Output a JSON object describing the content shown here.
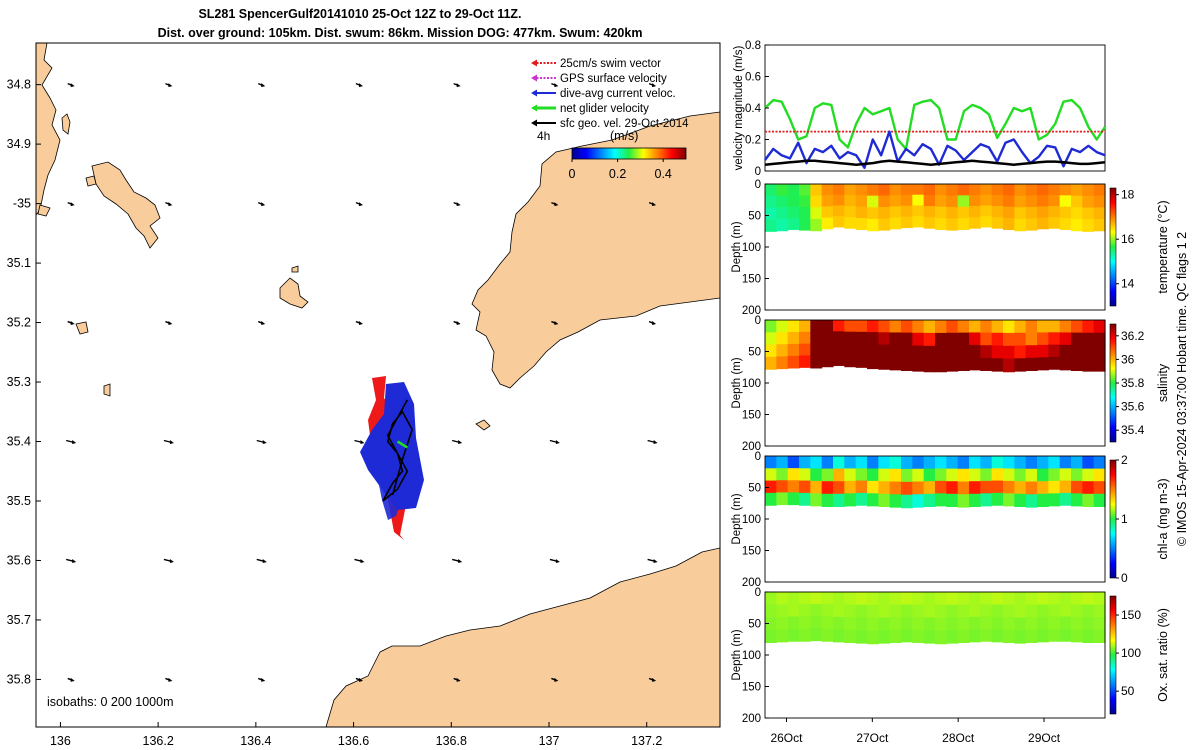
{
  "title": {
    "line1": "SL281 SpencerGulf20141010 25-Oct 12Z to 29-Oct 11Z.",
    "line2": "Dist. over ground: 105km. Dist. swum: 86km. Mission DOG: 477km. Swum: 420km"
  },
  "colors": {
    "land": "#f9cc9c",
    "swim_vector": "#e51a1a",
    "gps_velocity": "#cc33cc",
    "current": "#1e2ad6",
    "glider": "#22dd22",
    "geo": "#000000"
  },
  "chart_data": [
    {
      "type": "map",
      "xlim": [
        135.95,
        137.35
      ],
      "ylim": [
        -35.88,
        -34.73
      ],
      "x_ticks": [
        136,
        136.2,
        136.4,
        136.6,
        136.8,
        137,
        137.2
      ],
      "x_tick_labels": [
        "136",
        "136.2",
        "136.4",
        "136.6",
        "136.8",
        "137",
        "137.2"
      ],
      "y_ticks": [
        -34.8,
        -34.9,
        -35,
        -35.1,
        -35.2,
        -35.3,
        -35.4,
        -35.5,
        -35.6,
        -35.7,
        -35.8
      ],
      "y_tick_labels": [
        "34.8",
        "34.9",
        "-35",
        "35.1",
        "35.2",
        "35.3",
        "35.4",
        "35.5",
        "35.6",
        "35.7",
        "35.8"
      ],
      "legend": [
        {
          "label": "25cm/s swim vector",
          "color": "#e51a1a"
        },
        {
          "label": "GPS surface velocity",
          "color": "#cc33cc"
        },
        {
          "label": "dive-avg current veloc.",
          "color": "#1e2ad6"
        },
        {
          "label": "net glider velocity",
          "color": "#22dd22"
        },
        {
          "label": "sfc geo. vel. 29-Oct-2014",
          "color": "#000000"
        }
      ],
      "legend_position": "top-right",
      "colorbar": {
        "label": "(m/s)",
        "ticks": [
          "0",
          "0.2",
          "0.4"
        ],
        "range": [
          0,
          0.5
        ],
        "extra": "4h"
      },
      "annotation": "isobaths: 0   200  1000m",
      "track_lon": [
        136.71,
        136.69,
        136.67,
        136.69,
        136.7,
        136.68,
        136.66,
        136.69,
        136.71,
        136.69,
        136.67,
        136.68,
        136.7,
        136.72,
        136.7,
        136.68
      ],
      "track_lat": [
        -35.33,
        -35.36,
        -35.39,
        -35.42,
        -35.45,
        -35.47,
        -35.5,
        -35.48,
        -35.45,
        -35.42,
        -35.4,
        -35.37,
        -35.35,
        -35.38,
        -35.43,
        -35.49
      ]
    },
    {
      "type": "line",
      "ylabel": "velocity magnitude (m/s)",
      "ylim": [
        0,
        0.8
      ],
      "y_ticks": [
        "0",
        "0.2",
        "0.4",
        "0.6",
        "0.8"
      ],
      "xlim": [
        25.5,
        29.46
      ],
      "series": [
        {
          "color": "#22dd22",
          "values": [
            0.4,
            0.45,
            0.44,
            0.33,
            0.2,
            0.22,
            0.4,
            0.43,
            0.42,
            0.2,
            0.15,
            0.3,
            0.4,
            0.36,
            0.38,
            0.4,
            0.2,
            0.14,
            0.42,
            0.44,
            0.45,
            0.4,
            0.2,
            0.2,
            0.38,
            0.42,
            0.4,
            0.36,
            0.21,
            0.3,
            0.4,
            0.38,
            0.4,
            0.2,
            0.23,
            0.3,
            0.44,
            0.45,
            0.4,
            0.28,
            0.2,
            0.28
          ]
        },
        {
          "color": "#e51a1a",
          "values": [
            0.25,
            0.25
          ]
        },
        {
          "color": "#1e2ad6",
          "values": [
            0.07,
            0.14,
            0.1,
            0.08,
            0.18,
            0.05,
            0.14,
            0.12,
            0.16,
            0.08,
            0.12,
            0.1,
            0.02,
            0.2,
            0.1,
            0.25,
            0.06,
            0.14,
            0.1,
            0.17,
            0.14,
            0.04,
            0.16,
            0.13,
            0.07,
            0.12,
            0.17,
            0.15,
            0.06,
            0.18,
            0.2,
            0.12,
            0.05,
            0.09,
            0.16,
            0.15,
            0.03,
            0.14,
            0.12,
            0.16,
            0.12,
            0.1
          ]
        },
        {
          "color": "#000000",
          "values": [
            0.04,
            0.045,
            0.05,
            0.055,
            0.06,
            0.065,
            0.065,
            0.06,
            0.055,
            0.05,
            0.045,
            0.04,
            0.045,
            0.05,
            0.06,
            0.065,
            0.06,
            0.055,
            0.05,
            0.045,
            0.04,
            0.045,
            0.05,
            0.055,
            0.06,
            0.065,
            0.06,
            0.055,
            0.05,
            0.045,
            0.04,
            0.045,
            0.05,
            0.055,
            0.06,
            0.06,
            0.055,
            0.05,
            0.045,
            0.045,
            0.05,
            0.055
          ]
        }
      ]
    },
    {
      "type": "heatmap",
      "ylabel": "Depth (m)",
      "ylim": [
        0,
        200
      ],
      "y_ticks": [
        "0",
        "50",
        "100",
        "150",
        "200"
      ],
      "colorbar_label": "temperature (°C)",
      "colorbar_ticks": [
        "18",
        "16",
        "14"
      ],
      "color_range": [
        13,
        18.3
      ],
      "bottom_depth": [
        75,
        74,
        72,
        73,
        74,
        71,
        68,
        70,
        72,
        74,
        73,
        71,
        69,
        68,
        70,
        72,
        73,
        72,
        70,
        68,
        70,
        72,
        74,
        73,
        71,
        70,
        72,
        74,
        75,
        74
      ],
      "values": [
        [
          15.5,
          15.7,
          15.6,
          15.8,
          16.6,
          16.9,
          17.0,
          16.8,
          16.9,
          17.0,
          17.1,
          16.9,
          17.0,
          17.0,
          17.1,
          16.9,
          17.0,
          17.1,
          17.0,
          16.9,
          17.0,
          17.1,
          16.9,
          17.0,
          17.1,
          17.0,
          16.9,
          16.8,
          16.9,
          17.0
        ],
        [
          15.4,
          15.5,
          15.6,
          15.7,
          16.5,
          16.8,
          16.9,
          16.7,
          16.8,
          16.2,
          16.9,
          16.8,
          16.9,
          16.3,
          17.0,
          16.8,
          16.9,
          16.0,
          16.9,
          16.8,
          16.9,
          17.0,
          16.8,
          16.9,
          17.0,
          16.9,
          16.3,
          16.6,
          16.8,
          16.9
        ],
        [
          15.3,
          15.4,
          15.5,
          15.6,
          16.2,
          16.6,
          16.7,
          16.6,
          16.7,
          16.6,
          16.7,
          16.6,
          16.7,
          16.6,
          16.7,
          16.6,
          16.7,
          16.6,
          16.7,
          16.6,
          16.7,
          16.8,
          16.6,
          16.7,
          16.8,
          16.7,
          16.6,
          16.5,
          16.6,
          16.7
        ],
        [
          15.4,
          15.3,
          15.4,
          15.6,
          16.0,
          16.4,
          16.6,
          16.5,
          16.5,
          16.4,
          16.6,
          16.5,
          16.6,
          16.5,
          16.6,
          16.5,
          16.6,
          16.5,
          16.6,
          16.5,
          16.6,
          16.7,
          16.5,
          16.6,
          16.7,
          16.6,
          16.5,
          16.4,
          16.5,
          16.6
        ]
      ]
    },
    {
      "type": "heatmap",
      "ylabel": "Depth (m)",
      "ylim": [
        0,
        200
      ],
      "y_ticks": [
        "0",
        "50",
        "100",
        "150",
        "200"
      ],
      "colorbar_label": "salinity",
      "colorbar_ticks": [
        "36.2",
        "36",
        "35.8",
        "35.6",
        "35.4"
      ],
      "color_range": [
        35.3,
        36.3
      ],
      "bottom_depth": [
        78,
        77,
        76,
        75,
        76,
        74,
        72,
        74,
        75,
        77,
        78,
        79,
        80,
        81,
        82,
        82,
        81,
        80,
        79,
        80,
        81,
        82,
        81,
        80,
        79,
        78,
        79,
        80,
        81,
        81
      ],
      "values": [
        [
          35.85,
          35.9,
          35.95,
          36.0,
          36.3,
          36.3,
          36.15,
          36.1,
          36.1,
          36.15,
          36.1,
          36.05,
          36.1,
          36.05,
          36.0,
          36.05,
          36.1,
          36.05,
          36.0,
          36.05,
          36.0,
          35.95,
          36.0,
          36.05,
          36.0,
          36.0,
          36.05,
          36.1,
          36.15,
          36.2
        ],
        [
          35.9,
          35.95,
          36.0,
          36.05,
          36.3,
          36.3,
          36.3,
          36.3,
          36.3,
          36.3,
          36.25,
          36.3,
          36.3,
          36.2,
          36.15,
          36.3,
          36.3,
          36.3,
          36.2,
          36.1,
          36.15,
          36.1,
          36.1,
          36.05,
          36.1,
          36.15,
          36.2,
          36.3,
          36.3,
          36.3
        ],
        [
          35.95,
          36.0,
          36.05,
          36.1,
          36.3,
          36.3,
          36.3,
          36.3,
          36.3,
          36.3,
          36.3,
          36.3,
          36.3,
          36.3,
          36.3,
          36.3,
          36.3,
          36.3,
          36.3,
          36.25,
          36.2,
          36.2,
          36.15,
          36.2,
          36.2,
          36.25,
          36.3,
          36.3,
          36.3,
          36.3
        ],
        [
          36.0,
          36.05,
          36.1,
          36.15,
          36.3,
          36.3,
          36.3,
          36.3,
          36.3,
          36.3,
          36.3,
          36.3,
          36.3,
          36.3,
          36.3,
          36.3,
          36.3,
          36.3,
          36.3,
          36.3,
          36.3,
          36.25,
          36.3,
          36.3,
          36.3,
          36.3,
          36.3,
          36.3,
          36.3,
          36.3
        ]
      ]
    },
    {
      "type": "heatmap",
      "ylabel": "Depth (m)",
      "ylim": [
        0,
        200
      ],
      "y_ticks": [
        "0",
        "50",
        "100",
        "150",
        "200"
      ],
      "colorbar_label": "chl-a (mg m-3)",
      "colorbar_ticks": [
        "2",
        "1",
        "0"
      ],
      "color_range": [
        0,
        2
      ],
      "bottom_depth": [
        78,
        77,
        77,
        78,
        79,
        80,
        80,
        79,
        78,
        79,
        80,
        81,
        82,
        81,
        80,
        79,
        80,
        81,
        80,
        79,
        78,
        79,
        80,
        81,
        80,
        79,
        78,
        79,
        80,
        80
      ],
      "values": [
        [
          0.5,
          0.6,
          0.4,
          0.6,
          0.7,
          0.5,
          0.8,
          0.6,
          0.7,
          0.5,
          0.7,
          0.8,
          0.6,
          0.5,
          0.6,
          0.7,
          0.6,
          0.5,
          0.7,
          0.6,
          0.8,
          0.7,
          0.6,
          0.5,
          0.6,
          0.7,
          0.5,
          0.6,
          0.4,
          0.5
        ],
        [
          1.2,
          1.1,
          1.3,
          1.2,
          1.0,
          1.1,
          1.4,
          1.2,
          1.1,
          1.0,
          1.2,
          1.3,
          1.1,
          1.2,
          1.0,
          1.1,
          1.2,
          1.3,
          1.2,
          1.1,
          1.3,
          1.2,
          1.1,
          1.2,
          1.0,
          1.1,
          1.2,
          1.1,
          1.2,
          1.3
        ],
        [
          1.7,
          1.6,
          1.5,
          1.6,
          1.4,
          1.7,
          1.6,
          1.4,
          1.5,
          1.3,
          1.4,
          1.5,
          1.6,
          1.5,
          1.4,
          1.6,
          1.7,
          1.5,
          1.7,
          1.6,
          1.6,
          1.5,
          1.4,
          1.5,
          1.4,
          1.3,
          1.4,
          1.6,
          1.7,
          1.6
        ],
        [
          1.0,
          1.1,
          1.0,
          0.9,
          1.1,
          1.0,
          0.9,
          1.0,
          0.9,
          1.0,
          1.1,
          1.0,
          0.9,
          0.8,
          0.9,
          1.0,
          1.0,
          1.1,
          1.0,
          0.9,
          1.0,
          1.1,
          1.0,
          0.9,
          1.0,
          1.0,
          0.9,
          1.0,
          1.1,
          1.0
        ]
      ]
    },
    {
      "type": "heatmap",
      "ylabel": "Depth (m)",
      "ylim": [
        0,
        200
      ],
      "y_ticks": [
        "0",
        "50",
        "100",
        "150",
        "200"
      ],
      "colorbar_label": "Ox. sat. ratio (%)",
      "colorbar_ticks": [
        "150",
        "100",
        "50"
      ],
      "color_range": [
        20,
        175
      ],
      "bottom_depth": [
        80,
        79,
        78,
        78,
        77,
        78,
        79,
        80,
        81,
        82,
        81,
        80,
        79,
        80,
        81,
        82,
        81,
        80,
        79,
        78,
        79,
        80,
        81,
        80,
        79,
        78,
        78,
        79,
        80,
        80
      ],
      "values": [
        [
          108,
          110,
          109,
          110,
          111,
          110,
          109,
          110,
          111,
          110,
          109,
          110,
          111,
          110,
          109,
          110,
          111,
          110,
          109,
          110,
          111,
          110,
          109,
          110,
          111,
          110,
          109,
          110,
          111,
          110
        ],
        [
          107,
          108,
          109,
          108,
          107,
          108,
          109,
          108,
          107,
          108,
          109,
          108,
          107,
          108,
          109,
          108,
          107,
          108,
          109,
          108,
          107,
          108,
          109,
          108,
          107,
          108,
          109,
          108,
          107,
          108
        ],
        [
          106,
          107,
          106,
          107,
          106,
          107,
          106,
          107,
          106,
          107,
          106,
          107,
          106,
          107,
          106,
          107,
          106,
          107,
          106,
          107,
          106,
          107,
          106,
          107,
          106,
          107,
          106,
          107,
          106,
          107
        ],
        [
          105,
          106,
          105,
          106,
          105,
          106,
          105,
          106,
          105,
          106,
          105,
          106,
          105,
          106,
          105,
          106,
          105,
          106,
          105,
          106,
          105,
          106,
          105,
          106,
          105,
          106,
          105,
          106,
          105,
          106
        ]
      ]
    }
  ],
  "time_axis": {
    "ticks": [
      25.75,
      26.75,
      27.75,
      28.75
    ],
    "tick_labels": [
      "26Oct",
      "27Oct",
      "28Oct",
      "29Oct"
    ]
  },
  "credit": "© IMOS 15-Apr-2024 03:37:00 Hobart time. QC flags 1  2"
}
